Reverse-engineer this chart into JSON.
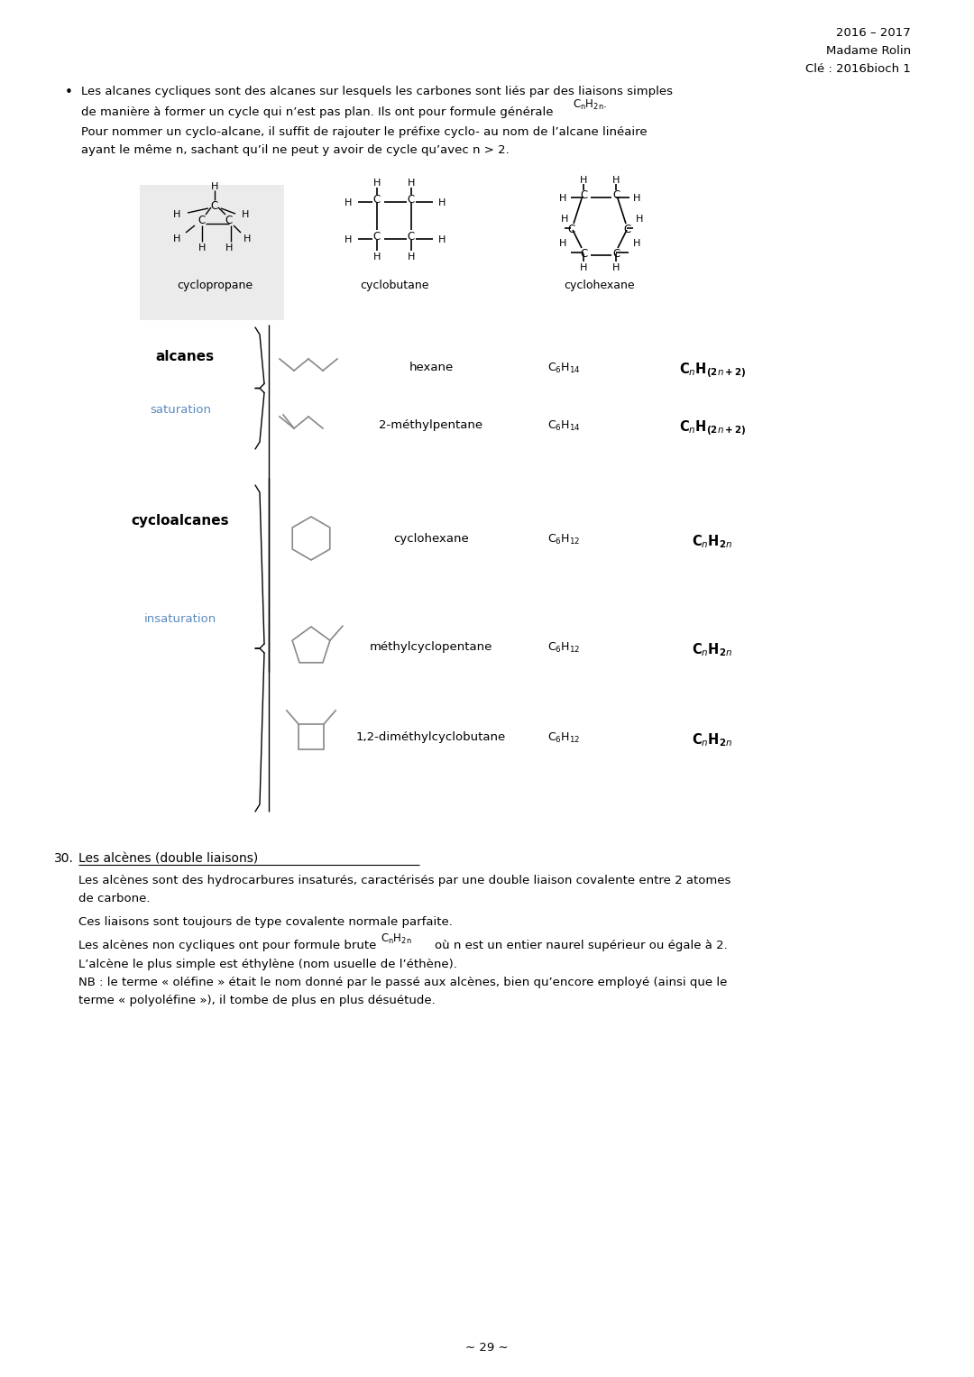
{
  "bg_color": "#ffffff",
  "page_width": 10.8,
  "page_height": 15.27,
  "dpi": 100,
  "header_right": [
    "2016 – 2017",
    "Madame Rolin",
    "Clé : 2016bioch 1"
  ],
  "bullet_text_1": "Les alcanes cycliques sont des alcanes sur lesquels les carbones sont liés par des liaisons simples",
  "bullet_text_2": "de manière à former un cycle qui n’est pas plan. Ils ont pour formule générale",
  "bullet_text_3": "Pour nommer un cyclo-alcane, il suffit de rajouter le préfixe cyclo- au nom de l’alcane linéaire",
  "bullet_text_4": "ayant le même n, sachant qu’il ne peut y avoir de cycle qu’avec n > 2.",
  "cyclopropane_label": "cyclopropane",
  "cyclobutane_label": "cyclobutane",
  "cyclohexane_label": "cyclohexane",
  "hexane_name": "hexane",
  "hexane_f1": "C₆H₁₄",
  "methylpentane_name": "2-méthylpentane",
  "methylpentane_f1": "C₆H₁₄",
  "cyclohexane_name": "cyclohexane",
  "cyclohexane_f1": "C₆H₁₂",
  "methylcyclopentane_name": "méthylcyclopentane",
  "methylcyclopentane_f1": "C₆H₁₂",
  "dimethylcyclobutane_name": "1,2-diméthylcyclobutane",
  "dimethylcyclobutane_f1": "C₆H₁₂",
  "label_alcanes": "alcanes",
  "label_saturation": "saturation",
  "label_cycloalcanes": "cycloalcanes",
  "label_insaturation": "insaturation",
  "section30_num": "30.",
  "section30_title": "Les alcènes (double liaisons)",
  "section30_p1": "Les alcènes sont des hydrocarbures insaturés, caractérisés par une double liaison covalente entre 2 atomes",
  "section30_p2": "de carbone.",
  "section30_p3": "Ces liaisons sont toujours de type covalente normale parfaite.",
  "section30_p4a": "Les alcènes non cycliques ont pour formule brute",
  "section30_p4b": "où n est un entier naurel supérieur ou égale à 2.",
  "section30_p5": "L’alcène le plus simple est éthylène (nom usuelle de l’éthène).",
  "section30_p6": "NB : le terme « oléfine » était le nom donné par le passé aux alcènes, bien qu’encore employé (ainsi que le",
  "section30_p7": "terme « polyoléfine »), il tombe de plus en plus désuétude.",
  "page_number": "∼ 29 ∼",
  "text_color": "#000000",
  "blue_color": "#5b8abf",
  "light_gray_bg": "#ebebeb"
}
